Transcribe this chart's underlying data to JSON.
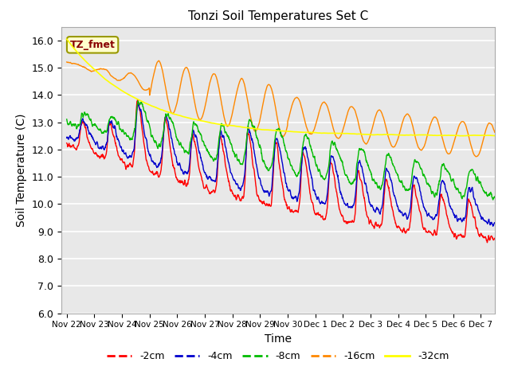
{
  "title": "Tonzi Soil Temperatures Set C",
  "xlabel": "Time",
  "ylabel": "Soil Temperature (C)",
  "ylim": [
    6.0,
    16.5
  ],
  "background_color": "#e8e8e8",
  "plot_bg_color": "#e8e8e8",
  "grid_color": "white",
  "annotation_text": "TZ_fmet",
  "annotation_bg": "#ffffcc",
  "annotation_border": "#999900",
  "legend_entries": [
    "-2cm",
    "-4cm",
    "-8cm",
    "-16cm",
    "-32cm"
  ],
  "line_colors": [
    "#ff0000",
    "#0000cc",
    "#00bb00",
    "#ff8800",
    "#ffff00"
  ],
  "line_widths": [
    1.0,
    1.0,
    1.0,
    1.0,
    1.2
  ],
  "xtick_labels": [
    "Nov 22",
    "Nov 23",
    "Nov 24",
    "Nov 25",
    "Nov 26",
    "Nov 27",
    "Nov 28",
    "Nov 29",
    "Nov 30",
    "Dec 1",
    "Dec 2",
    "Dec 3",
    "Dec 4",
    "Dec 5",
    "Dec 6",
    "Dec 7"
  ],
  "xtick_positions": [
    0,
    1,
    2,
    3,
    4,
    5,
    6,
    7,
    8,
    9,
    10,
    11,
    12,
    13,
    14,
    15
  ],
  "ytick_labels": [
    "6.0",
    "7.0",
    "8.0",
    "9.0",
    "10.0",
    "11.0",
    "12.0",
    "13.0",
    "14.0",
    "15.0",
    "16.0"
  ],
  "ytick_positions": [
    6.0,
    7.0,
    8.0,
    9.0,
    10.0,
    11.0,
    12.0,
    13.0,
    14.0,
    15.0,
    16.0
  ]
}
